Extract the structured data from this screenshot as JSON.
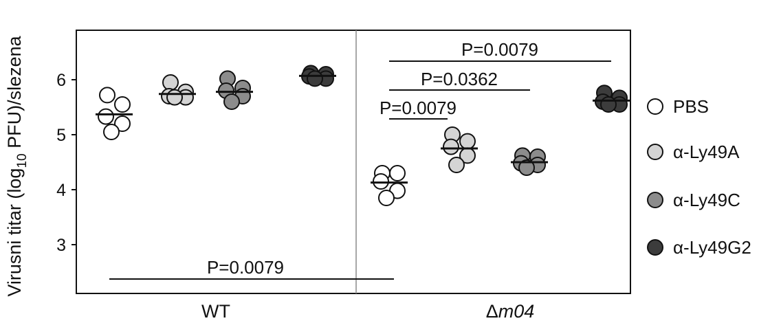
{
  "chart_data": {
    "type": "scatter",
    "ylabel_main": "Virusni titar (log",
    "ylabel_sub": "10",
    "ylabel_tail": " PFU)/slezena",
    "ylim": [
      2.25,
      6.95
    ],
    "yticks": [
      "3",
      "4",
      "5",
      "6"
    ],
    "xgroups": [
      "WT",
      "m04"
    ],
    "xgroup_prefix": "Δ",
    "grid": false,
    "legend_position": "right",
    "series": [
      {
        "name": "PBS",
        "legend": "PBS",
        "color": "#ffffff"
      },
      {
        "name": "α-Ly49A",
        "legend": "α-Ly49A",
        "color": "#d4d4d4"
      },
      {
        "name": "α-Ly49C",
        "legend": "α-Ly49C",
        "color": "#8c8c8c"
      },
      {
        "name": "α-Ly49G2",
        "legend": "α-Ly49G2",
        "color": "#3c3c3c"
      }
    ],
    "groups": [
      {
        "group": "WT",
        "points": [
          {
            "series": 0,
            "values": [
              5.72,
              5.55,
              5.33,
              5.2,
              5.05
            ],
            "median": 5.37
          },
          {
            "series": 1,
            "values": [
              5.95,
              5.78,
              5.7,
              5.68,
              5.68
            ],
            "median": 5.74
          },
          {
            "series": 2,
            "values": [
              6.02,
              5.85,
              5.8,
              5.7,
              5.6
            ],
            "median": 5.78
          },
          {
            "series": 3,
            "values": [
              6.12,
              6.1,
              6.06,
              6.02,
              6.02
            ],
            "median": 6.07
          }
        ]
      },
      {
        "group": "m04",
        "points": [
          {
            "series": 0,
            "values": [
              4.3,
              4.3,
              4.15,
              3.98,
              3.85
            ],
            "median": 4.13
          },
          {
            "series": 1,
            "values": [
              5.0,
              4.88,
              4.78,
              4.62,
              4.45
            ],
            "median": 4.75
          },
          {
            "series": 2,
            "values": [
              4.62,
              4.6,
              4.48,
              4.45,
              4.4
            ],
            "median": 4.5
          },
          {
            "series": 3,
            "values": [
              5.76,
              5.67,
              5.6,
              5.55,
              5.55
            ],
            "median": 5.62
          }
        ]
      }
    ],
    "annotations": [
      {
        "text": "P=0.0079",
        "from": "WT PBS",
        "to": "m04 PBS"
      },
      {
        "text": "P=0.0079",
        "from": "m04 PBS",
        "to": "m04 α-Ly49A"
      },
      {
        "text": "P=0.0362",
        "from": "m04 PBS",
        "to": "m04 α-Ly49C"
      },
      {
        "text": "P=0.0079",
        "from": "m04 PBS",
        "to": "m04 α-Ly49G2"
      }
    ]
  }
}
